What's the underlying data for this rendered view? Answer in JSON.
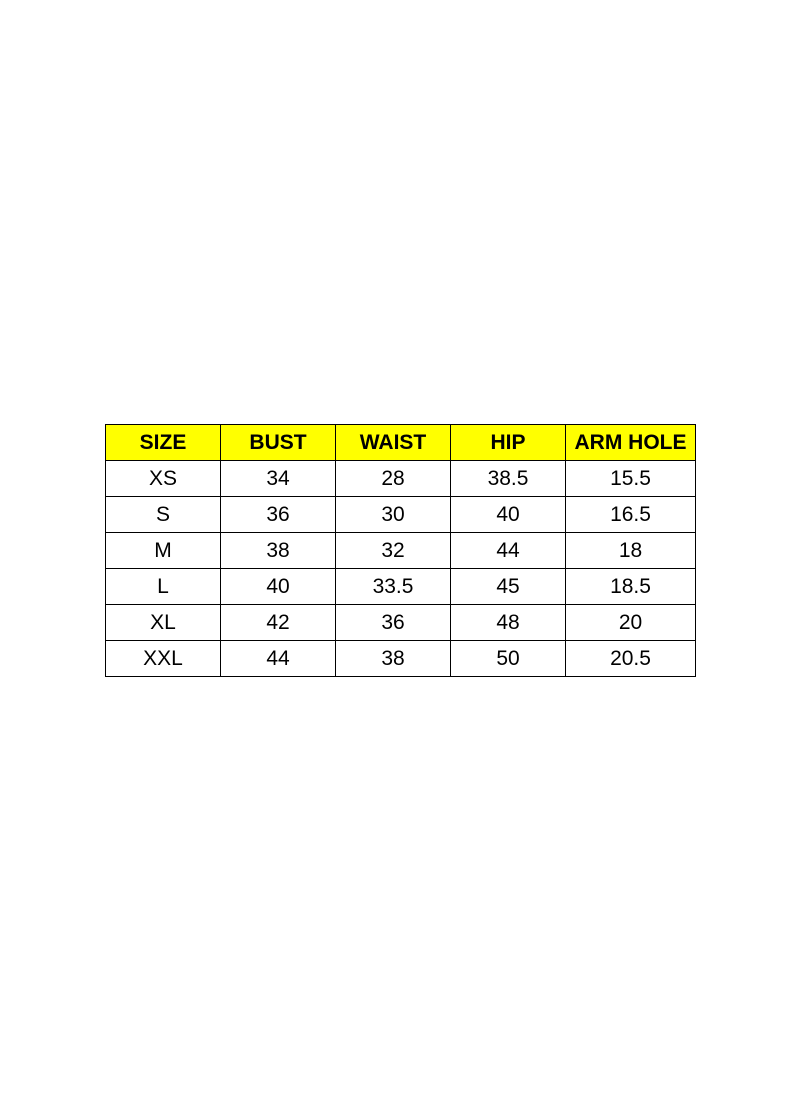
{
  "size_chart": {
    "header_color": "#ffff00",
    "columns": [
      "SIZE",
      "BUST",
      "WAIST",
      "HIP",
      "ARM HOLE"
    ],
    "rows": [
      [
        "XS",
        "34",
        "28",
        "38.5",
        "15.5"
      ],
      [
        "S",
        "36",
        "30",
        "40",
        "16.5"
      ],
      [
        "M",
        "38",
        "32",
        "44",
        "18"
      ],
      [
        "L",
        "40",
        "33.5",
        "45",
        "18.5"
      ],
      [
        "XL",
        "42",
        "36",
        "48",
        "20"
      ],
      [
        "XXL",
        "44",
        "38",
        "50",
        "20.5"
      ]
    ]
  }
}
